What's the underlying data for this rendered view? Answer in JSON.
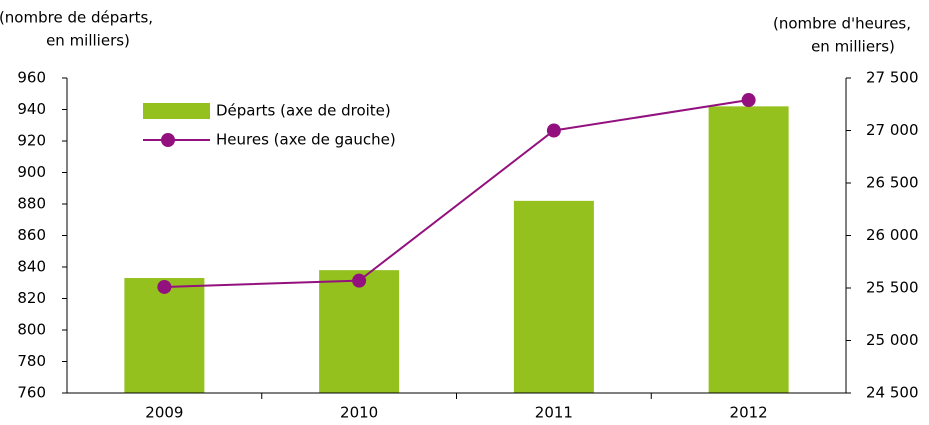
{
  "chart_data": {
    "type": "bar_line",
    "y_label": [
      "(nombre de départs,",
      "en milliers)"
    ],
    "y2_label": [
      "(nombre d'heures,",
      "en milliers)"
    ],
    "categories": [
      "2009",
      "2010",
      "2011",
      "2012"
    ],
    "series": [
      {
        "name": "Départs (axe de droite)",
        "type": "bar",
        "color": "#95c11f",
        "values": [
          833,
          838,
          882,
          942
        ]
      },
      {
        "name": "Heures (axe de gauche)",
        "type": "line",
        "axis": "y2",
        "color": "#93117e",
        "values": [
          25510,
          25570,
          27000,
          27290
        ]
      }
    ],
    "ylim": [
      760,
      960
    ],
    "yticks": [
      760,
      780,
      800,
      820,
      840,
      860,
      880,
      900,
      920,
      940,
      960
    ],
    "y2lim": [
      24500,
      27500
    ],
    "y2ticks": [
      {
        "value": 24500,
        "label": "24 500"
      },
      {
        "value": 25000,
        "label": "25 000"
      },
      {
        "value": 25500,
        "label": "25 500"
      },
      {
        "value": 26000,
        "label": "26 000"
      },
      {
        "value": 26500,
        "label": "26 500"
      },
      {
        "value": 27000,
        "label": "27 000"
      },
      {
        "value": 27500,
        "label": "27 500"
      }
    ],
    "grid": false
  }
}
